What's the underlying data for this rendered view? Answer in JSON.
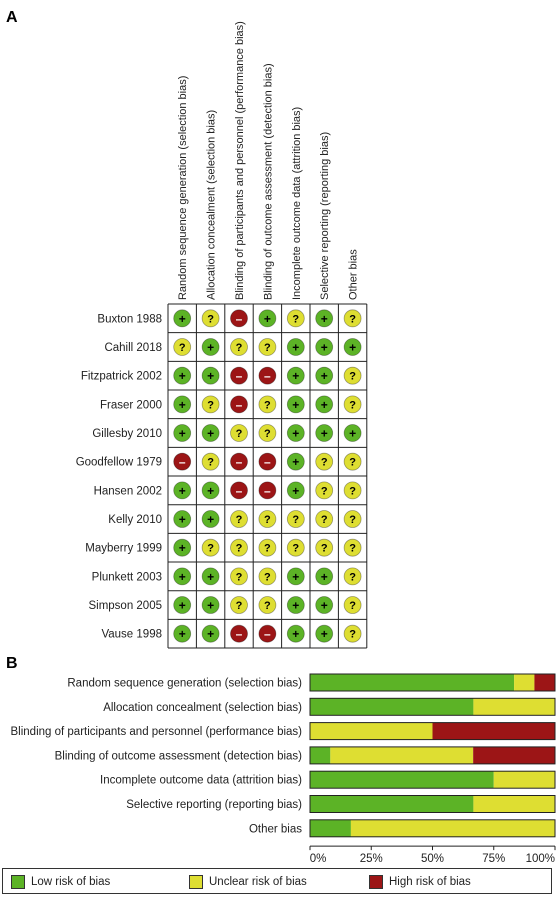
{
  "colors": {
    "low": "#5cb326",
    "unclear": "#dede32",
    "high": "#9c1516",
    "plus": "#000000",
    "question": "#000000",
    "minus": "#ffffff"
  },
  "panels": {
    "a": "A",
    "b": "B"
  },
  "symbols": {
    "low": "+",
    "unclear": "?",
    "high": "–"
  },
  "legend": {
    "low": "Low risk of bias",
    "unclear": "Unclear risk of bias",
    "high": "High risk of bias"
  },
  "chart_data": [
    {
      "type": "table",
      "domains": [
        "Random sequence generation (selection bias)",
        "Allocation concealment (selection bias)",
        "Blinding of participants and personnel (performance bias)",
        "Blinding of outcome assessment (detection bias)",
        "Incomplete outcome data (attrition bias)",
        "Selective reporting (reporting bias)",
        "Other bias"
      ],
      "studies": [
        {
          "name": "Buxton 1988",
          "ratings": [
            "low",
            "unclear",
            "high",
            "low",
            "unclear",
            "low",
            "unclear"
          ]
        },
        {
          "name": "Cahill 2018",
          "ratings": [
            "unclear",
            "low",
            "unclear",
            "unclear",
            "low",
            "low",
            "low"
          ]
        },
        {
          "name": "Fitzpatrick 2002",
          "ratings": [
            "low",
            "low",
            "high",
            "high",
            "low",
            "low",
            "unclear"
          ]
        },
        {
          "name": "Fraser 2000",
          "ratings": [
            "low",
            "unclear",
            "high",
            "unclear",
            "low",
            "low",
            "unclear"
          ]
        },
        {
          "name": "Gillesby 2010",
          "ratings": [
            "low",
            "low",
            "unclear",
            "unclear",
            "low",
            "low",
            "low"
          ]
        },
        {
          "name": "Goodfellow 1979",
          "ratings": [
            "high",
            "unclear",
            "high",
            "high",
            "low",
            "unclear",
            "unclear"
          ]
        },
        {
          "name": "Hansen 2002",
          "ratings": [
            "low",
            "low",
            "high",
            "high",
            "low",
            "unclear",
            "unclear"
          ]
        },
        {
          "name": "Kelly 2010",
          "ratings": [
            "low",
            "low",
            "unclear",
            "unclear",
            "unclear",
            "unclear",
            "unclear"
          ]
        },
        {
          "name": "Mayberry 1999",
          "ratings": [
            "low",
            "unclear",
            "unclear",
            "unclear",
            "unclear",
            "unclear",
            "unclear"
          ]
        },
        {
          "name": "Plunkett 2003",
          "ratings": [
            "low",
            "low",
            "unclear",
            "unclear",
            "low",
            "low",
            "unclear"
          ]
        },
        {
          "name": "Simpson 2005",
          "ratings": [
            "low",
            "low",
            "unclear",
            "unclear",
            "low",
            "low",
            "unclear"
          ]
        },
        {
          "name": "Vause 1998",
          "ratings": [
            "low",
            "low",
            "high",
            "high",
            "low",
            "low",
            "unclear"
          ]
        }
      ]
    },
    {
      "type": "bar",
      "orientation": "horizontal",
      "stacked": true,
      "categories": [
        "Random sequence generation (selection bias)",
        "Allocation concealment (selection bias)",
        "Blinding of participants and personnel (performance bias)",
        "Blinding of outcome assessment (detection bias)",
        "Incomplete outcome data (attrition bias)",
        "Selective reporting (reporting bias)",
        "Other bias"
      ],
      "series": [
        {
          "name": "Low risk of bias",
          "color": "#5cb326",
          "values": [
            83.3,
            66.7,
            0,
            8.3,
            75,
            66.7,
            16.7
          ]
        },
        {
          "name": "Unclear risk of bias",
          "color": "#dede32",
          "values": [
            8.3,
            33.3,
            50,
            58.3,
            25,
            33.3,
            83.3
          ]
        },
        {
          "name": "High risk of bias",
          "color": "#9c1516",
          "values": [
            8.3,
            0,
            50,
            33.3,
            0,
            0,
            0
          ]
        }
      ],
      "xlim": [
        0,
        100
      ],
      "xticks": [
        "0%",
        "25%",
        "50%",
        "75%",
        "100%"
      ],
      "legend": "bottom"
    }
  ]
}
